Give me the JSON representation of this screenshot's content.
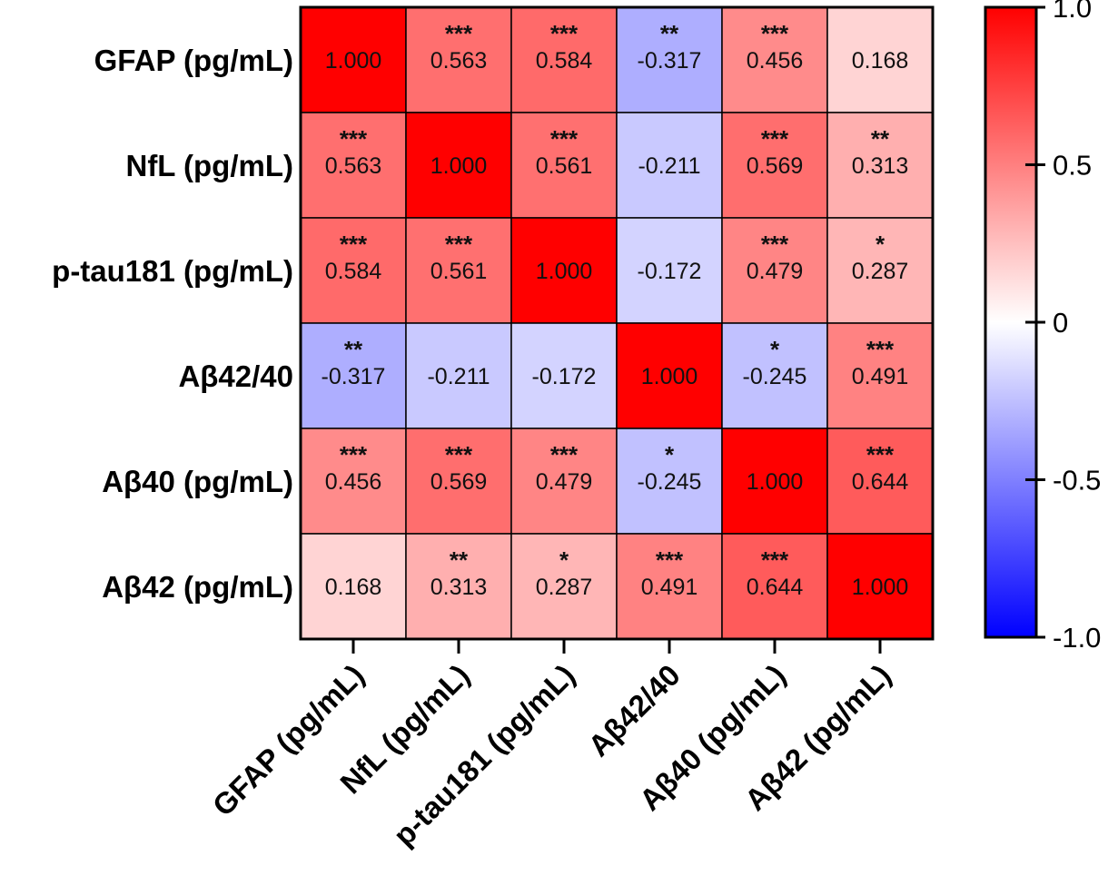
{
  "chart_data": {
    "type": "heatmap",
    "rows": [
      "GFAP (pg/mL)",
      "NfL (pg/mL)",
      "p-tau181 (pg/mL)",
      "Aβ42/40",
      "Aβ40 (pg/mL)",
      "Aβ42 (pg/mL)"
    ],
    "columns": [
      "GFAP (pg/mL)",
      "NfL (pg/mL)",
      "p-tau181 (pg/mL)",
      "Aβ42/40",
      "Aβ40 (pg/mL)",
      "Aβ42 (pg/mL)"
    ],
    "values": [
      [
        1.0,
        0.563,
        0.584,
        -0.317,
        0.456,
        0.168
      ],
      [
        0.563,
        1.0,
        0.561,
        -0.211,
        0.569,
        0.313
      ],
      [
        0.584,
        0.561,
        1.0,
        -0.172,
        0.479,
        0.287
      ],
      [
        -0.317,
        -0.211,
        -0.172,
        1.0,
        -0.245,
        0.491
      ],
      [
        0.456,
        0.569,
        0.479,
        -0.245,
        1.0,
        0.644
      ],
      [
        0.168,
        0.313,
        0.287,
        0.491,
        0.644,
        1.0
      ]
    ],
    "labels": [
      [
        "1.000",
        "0.563",
        "0.584",
        "-0.317",
        "0.456",
        "0.168"
      ],
      [
        "0.563",
        "1.000",
        "0.561",
        "-0.211",
        "0.569",
        "0.313"
      ],
      [
        "0.584",
        "0.561",
        "1.000",
        "-0.172",
        "0.479",
        "0.287"
      ],
      [
        "-0.317",
        "-0.211",
        "-0.172",
        "1.000",
        "-0.245",
        "0.491"
      ],
      [
        "0.456",
        "0.569",
        "0.479",
        "-0.245",
        "1.000",
        "0.644"
      ],
      [
        "0.168",
        "0.313",
        "0.287",
        "0.491",
        "0.644",
        "1.000"
      ]
    ],
    "significance": [
      [
        "",
        "***",
        "***",
        "**",
        "***",
        ""
      ],
      [
        "***",
        "",
        "***",
        "",
        "***",
        "**"
      ],
      [
        "***",
        "***",
        "",
        "",
        "***",
        "*"
      ],
      [
        "**",
        "",
        "",
        "",
        "*",
        "***"
      ],
      [
        "***",
        "***",
        "***",
        "*",
        "",
        "***"
      ],
      [
        "",
        "**",
        "*",
        "***",
        "***",
        ""
      ]
    ],
    "colorbar": {
      "range": [
        -1.0,
        1.0
      ],
      "ticks": [
        1.0,
        0.5,
        0,
        -0.5,
        -1.0
      ],
      "tick_labels": [
        "1.0",
        "0.5",
        "0",
        "-0.5",
        "-1.0"
      ],
      "color_min": "#0000ff",
      "color_mid": "#ffffff",
      "color_max": "#ff0000"
    },
    "grid_color": "#000000"
  }
}
